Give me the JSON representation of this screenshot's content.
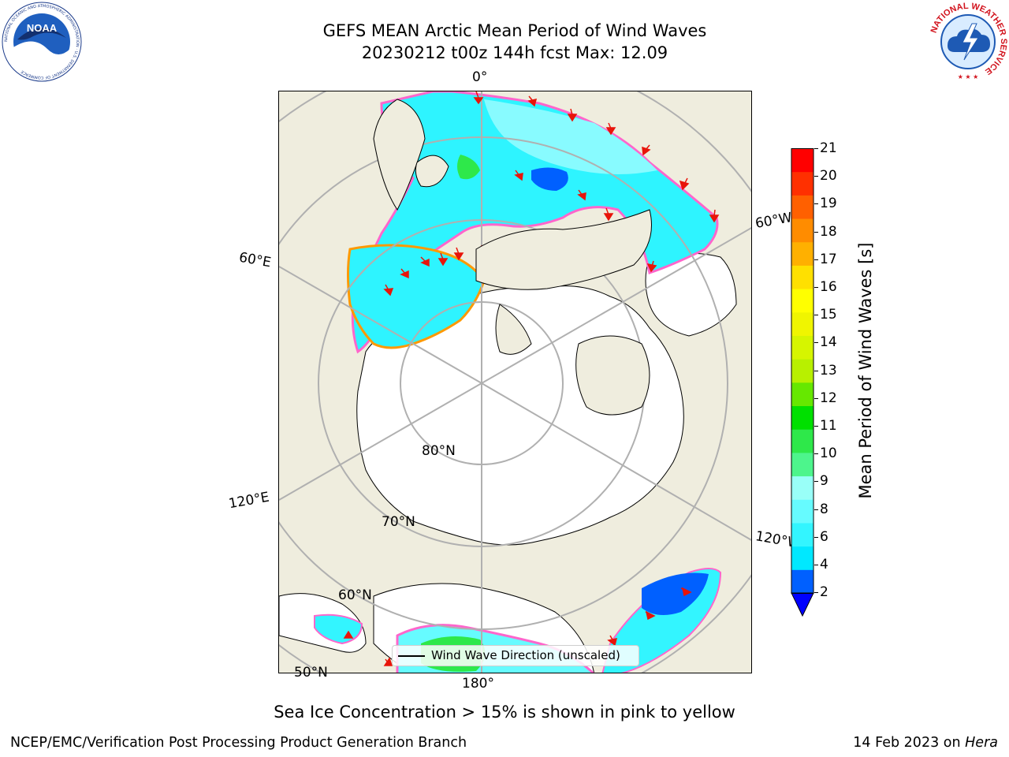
{
  "title": {
    "line1": "GEFS MEAN Arctic Mean Period of Wind Waves",
    "line2": "20230212 t00z 144h fcst   Max: 12.09"
  },
  "logos": {
    "noaa_text": "NOAA",
    "noaa_ring": "NATIONAL OCEANIC AND ATMOSPHERIC ADMINISTRATION · U.S. DEPARTMENT OF COMMERCE",
    "nws_ring": "NATIONAL WEATHER SERVICE"
  },
  "map": {
    "projection": "north-polar-stereographic",
    "land_color": "#efedde",
    "ice_color": "#ffffff",
    "gridline_color": "#b0b0b0",
    "longitude_labels": [
      "0°",
      "60°W",
      "120°W",
      "180°",
      "120°E",
      "60°E"
    ],
    "latitude_labels": [
      "80°N",
      "70°N",
      "60°N",
      "50°N"
    ],
    "legend_label": "Wind Wave Direction (unscaled)",
    "arrow_color": "#e8140a"
  },
  "colorbar": {
    "label": "Mean Period of Wind Waves [s]",
    "ticks": [
      "21",
      "20",
      "19",
      "18",
      "17",
      "16",
      "15",
      "14",
      "13",
      "12",
      "11",
      "10",
      "9",
      "8",
      "6",
      "4",
      "2"
    ],
    "colors_bottom_to_top": [
      "#0060ff",
      "#00e8ff",
      "#33f5ff",
      "#66fbff",
      "#99fff8",
      "#4df58c",
      "#2ee84a",
      "#00e000",
      "#66e800",
      "#b8f000",
      "#d6f500",
      "#f0f500",
      "#ffff00",
      "#ffe000",
      "#ffb000",
      "#ff8c00",
      "#ff6000",
      "#ff3000",
      "#ff0000"
    ],
    "extend_color": "#0000ff"
  },
  "footer": {
    "note": "Sea Ice Concentration > 15% is shown in pink to yellow",
    "left": "NCEP/EMC/Verification Post Processing Product Generation Branch",
    "right_date": "14 Feb 2023 on ",
    "right_host": "Hera"
  }
}
